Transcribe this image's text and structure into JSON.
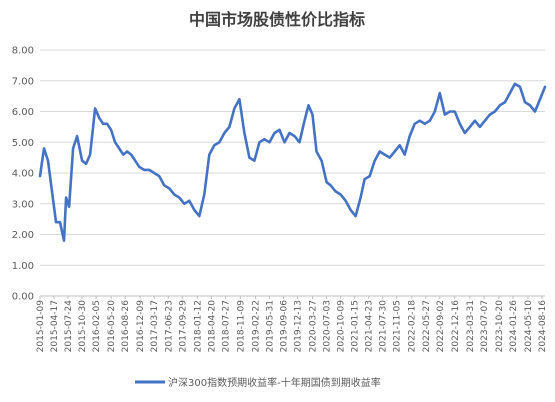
{
  "chart_data": {
    "type": "line",
    "title": "中国市场股债性价比指标",
    "xlabel": "",
    "ylabel": "",
    "ylim": [
      0,
      8
    ],
    "yticks": [
      "0.00",
      "1.00",
      "2.00",
      "3.00",
      "4.00",
      "5.00",
      "6.00",
      "7.00",
      "8.00"
    ],
    "x_tick_labels": [
      "2015-01-09",
      "2015-04-17",
      "2015-07-24",
      "2015-10-30",
      "2016-02-05",
      "2016-05-20",
      "2016-08-26",
      "2016-12-09",
      "2017-03-17",
      "2017-06-23",
      "2017-09-29",
      "2018-01-12",
      "2018-04-20",
      "2018-07-27",
      "2018-11-09",
      "2019-02-22",
      "2019-05-31",
      "2019-09-06",
      "2019-12-13",
      "2020-03-27",
      "2020-07-03",
      "2020-10-09",
      "2021-01-15",
      "2021-04-23",
      "2021-07-30",
      "2021-11-05",
      "2022-02-18",
      "2022-05-27",
      "2022-09-02",
      "2022-12-16",
      "2023-03-31",
      "2023-07-07",
      "2023-10-20",
      "2024-01-26",
      "2024-05-10",
      "2024-08-16"
    ],
    "legend_position": "bottom",
    "grid": true,
    "series": [
      {
        "name": "沪深300指数预期收益率-十年期国债到期收益率",
        "color": "#4472c4",
        "x": [
          "2015-01-09",
          "2015-02-06",
          "2015-03-06",
          "2015-04-03",
          "2015-05-01",
          "2015-05-29",
          "2015-06-26",
          "2015-07-10",
          "2015-07-31",
          "2015-08-28",
          "2015-09-25",
          "2015-10-30",
          "2015-11-27",
          "2015-12-25",
          "2016-01-29",
          "2016-02-26",
          "2016-03-25",
          "2016-04-22",
          "2016-05-20",
          "2016-06-17",
          "2016-07-15",
          "2016-08-12",
          "2016-09-09",
          "2016-10-07",
          "2016-11-04",
          "2016-12-02",
          "2017-01-06",
          "2017-02-10",
          "2017-03-17",
          "2017-04-21",
          "2017-05-26",
          "2017-06-30",
          "2017-08-04",
          "2017-09-08",
          "2017-10-13",
          "2017-11-17",
          "2017-12-22",
          "2018-01-26",
          "2018-03-02",
          "2018-04-06",
          "2018-05-11",
          "2018-06-15",
          "2018-07-20",
          "2018-08-24",
          "2018-09-28",
          "2018-11-02",
          "2018-12-07",
          "2019-01-11",
          "2019-02-15",
          "2019-03-22",
          "2019-04-26",
          "2019-05-31",
          "2019-07-05",
          "2019-08-09",
          "2019-09-13",
          "2019-10-18",
          "2019-11-22",
          "2019-12-27",
          "2020-01-31",
          "2020-02-28",
          "2020-03-27",
          "2020-04-24",
          "2020-05-29",
          "2020-07-03",
          "2020-07-31",
          "2020-09-04",
          "2020-10-09",
          "2020-11-13",
          "2020-12-18",
          "2021-01-22",
          "2021-02-26",
          "2021-03-26",
          "2021-04-30",
          "2021-06-04",
          "2021-07-09",
          "2021-08-13",
          "2021-09-17",
          "2021-10-22",
          "2021-11-26",
          "2021-12-31",
          "2022-02-04",
          "2022-03-11",
          "2022-04-15",
          "2022-05-20",
          "2022-06-24",
          "2022-07-29",
          "2022-09-02",
          "2022-10-07",
          "2022-11-11",
          "2022-12-16",
          "2023-01-20",
          "2023-02-24",
          "2023-03-31",
          "2023-05-05",
          "2023-06-09",
          "2023-07-14",
          "2023-08-18",
          "2023-09-22",
          "2023-10-27",
          "2023-12-01",
          "2024-01-05",
          "2024-02-09",
          "2024-03-15",
          "2024-04-19",
          "2024-05-24",
          "2024-06-28",
          "2024-08-02",
          "2024-09-06"
        ],
        "values": [
          3.9,
          4.8,
          4.4,
          3.4,
          2.4,
          2.4,
          1.8,
          3.2,
          2.9,
          4.8,
          5.2,
          4.4,
          4.3,
          4.6,
          6.1,
          5.8,
          5.6,
          5.6,
          5.4,
          5.0,
          4.8,
          4.6,
          4.7,
          4.6,
          4.4,
          4.2,
          4.1,
          4.1,
          4.0,
          3.9,
          3.6,
          3.5,
          3.3,
          3.2,
          3.0,
          3.1,
          2.8,
          2.6,
          3.3,
          4.6,
          4.9,
          5.0,
          5.3,
          5.5,
          6.1,
          6.4,
          5.3,
          4.5,
          4.4,
          5.0,
          5.1,
          5.0,
          5.3,
          5.4,
          5.0,
          5.3,
          5.2,
          5.0,
          5.7,
          6.2,
          5.9,
          4.7,
          4.4,
          3.7,
          3.6,
          3.4,
          3.3,
          3.1,
          2.8,
          2.6,
          3.2,
          3.8,
          3.9,
          4.4,
          4.7,
          4.6,
          4.5,
          4.7,
          4.9,
          4.6,
          5.2,
          5.6,
          5.7,
          5.6,
          5.7,
          6.0,
          6.6,
          5.9,
          6.0,
          6.0,
          5.6,
          5.3,
          5.5,
          5.7,
          5.5,
          5.7,
          5.9,
          6.0,
          6.2,
          6.3,
          6.6,
          6.9,
          6.8,
          6.3,
          6.2,
          6.0,
          6.4,
          6.8
        ]
      }
    ]
  }
}
